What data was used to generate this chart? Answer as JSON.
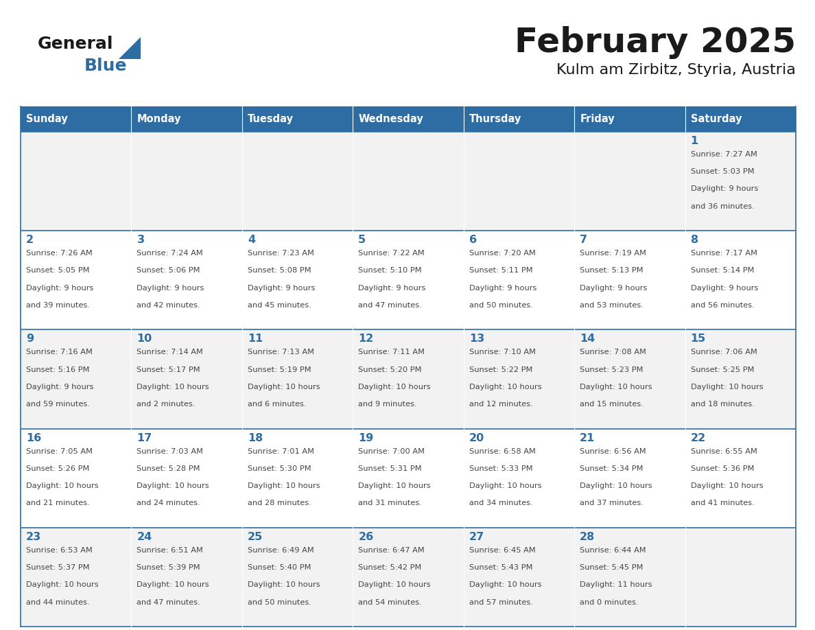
{
  "title": "February 2025",
  "subtitle": "Kulm am Zirbitz, Styria, Austria",
  "days_of_week": [
    "Sunday",
    "Monday",
    "Tuesday",
    "Wednesday",
    "Thursday",
    "Friday",
    "Saturday"
  ],
  "header_bg": "#2E6DA4",
  "header_text": "#FFFFFF",
  "cell_bg_odd": "#F2F2F2",
  "cell_bg_even": "#FFFFFF",
  "day_number_color": "#2E6DA4",
  "text_color": "#444444",
  "line_color": "#2E6DA4",
  "logo_color_general": "#1A1A1A",
  "logo_color_blue": "#2E6DA4",
  "calendar_data": [
    [
      null,
      null,
      null,
      null,
      null,
      null,
      {
        "day": 1,
        "sunrise": "7:27 AM",
        "sunset": "5:03 PM",
        "daylight_line1": "9 hours",
        "daylight_line2": "and 36 minutes."
      }
    ],
    [
      {
        "day": 2,
        "sunrise": "7:26 AM",
        "sunset": "5:05 PM",
        "daylight_line1": "9 hours",
        "daylight_line2": "and 39 minutes."
      },
      {
        "day": 3,
        "sunrise": "7:24 AM",
        "sunset": "5:06 PM",
        "daylight_line1": "9 hours",
        "daylight_line2": "and 42 minutes."
      },
      {
        "day": 4,
        "sunrise": "7:23 AM",
        "sunset": "5:08 PM",
        "daylight_line1": "9 hours",
        "daylight_line2": "and 45 minutes."
      },
      {
        "day": 5,
        "sunrise": "7:22 AM",
        "sunset": "5:10 PM",
        "daylight_line1": "9 hours",
        "daylight_line2": "and 47 minutes."
      },
      {
        "day": 6,
        "sunrise": "7:20 AM",
        "sunset": "5:11 PM",
        "daylight_line1": "9 hours",
        "daylight_line2": "and 50 minutes."
      },
      {
        "day": 7,
        "sunrise": "7:19 AM",
        "sunset": "5:13 PM",
        "daylight_line1": "9 hours",
        "daylight_line2": "and 53 minutes."
      },
      {
        "day": 8,
        "sunrise": "7:17 AM",
        "sunset": "5:14 PM",
        "daylight_line1": "9 hours",
        "daylight_line2": "and 56 minutes."
      }
    ],
    [
      {
        "day": 9,
        "sunrise": "7:16 AM",
        "sunset": "5:16 PM",
        "daylight_line1": "9 hours",
        "daylight_line2": "and 59 minutes."
      },
      {
        "day": 10,
        "sunrise": "7:14 AM",
        "sunset": "5:17 PM",
        "daylight_line1": "10 hours",
        "daylight_line2": "and 2 minutes."
      },
      {
        "day": 11,
        "sunrise": "7:13 AM",
        "sunset": "5:19 PM",
        "daylight_line1": "10 hours",
        "daylight_line2": "and 6 minutes."
      },
      {
        "day": 12,
        "sunrise": "7:11 AM",
        "sunset": "5:20 PM",
        "daylight_line1": "10 hours",
        "daylight_line2": "and 9 minutes."
      },
      {
        "day": 13,
        "sunrise": "7:10 AM",
        "sunset": "5:22 PM",
        "daylight_line1": "10 hours",
        "daylight_line2": "and 12 minutes."
      },
      {
        "day": 14,
        "sunrise": "7:08 AM",
        "sunset": "5:23 PM",
        "daylight_line1": "10 hours",
        "daylight_line2": "and 15 minutes."
      },
      {
        "day": 15,
        "sunrise": "7:06 AM",
        "sunset": "5:25 PM",
        "daylight_line1": "10 hours",
        "daylight_line2": "and 18 minutes."
      }
    ],
    [
      {
        "day": 16,
        "sunrise": "7:05 AM",
        "sunset": "5:26 PM",
        "daylight_line1": "10 hours",
        "daylight_line2": "and 21 minutes."
      },
      {
        "day": 17,
        "sunrise": "7:03 AM",
        "sunset": "5:28 PM",
        "daylight_line1": "10 hours",
        "daylight_line2": "and 24 minutes."
      },
      {
        "day": 18,
        "sunrise": "7:01 AM",
        "sunset": "5:30 PM",
        "daylight_line1": "10 hours",
        "daylight_line2": "and 28 minutes."
      },
      {
        "day": 19,
        "sunrise": "7:00 AM",
        "sunset": "5:31 PM",
        "daylight_line1": "10 hours",
        "daylight_line2": "and 31 minutes."
      },
      {
        "day": 20,
        "sunrise": "6:58 AM",
        "sunset": "5:33 PM",
        "daylight_line1": "10 hours",
        "daylight_line2": "and 34 minutes."
      },
      {
        "day": 21,
        "sunrise": "6:56 AM",
        "sunset": "5:34 PM",
        "daylight_line1": "10 hours",
        "daylight_line2": "and 37 minutes."
      },
      {
        "day": 22,
        "sunrise": "6:55 AM",
        "sunset": "5:36 PM",
        "daylight_line1": "10 hours",
        "daylight_line2": "and 41 minutes."
      }
    ],
    [
      {
        "day": 23,
        "sunrise": "6:53 AM",
        "sunset": "5:37 PM",
        "daylight_line1": "10 hours",
        "daylight_line2": "and 44 minutes."
      },
      {
        "day": 24,
        "sunrise": "6:51 AM",
        "sunset": "5:39 PM",
        "daylight_line1": "10 hours",
        "daylight_line2": "and 47 minutes."
      },
      {
        "day": 25,
        "sunrise": "6:49 AM",
        "sunset": "5:40 PM",
        "daylight_line1": "10 hours",
        "daylight_line2": "and 50 minutes."
      },
      {
        "day": 26,
        "sunrise": "6:47 AM",
        "sunset": "5:42 PM",
        "daylight_line1": "10 hours",
        "daylight_line2": "and 54 minutes."
      },
      {
        "day": 27,
        "sunrise": "6:45 AM",
        "sunset": "5:43 PM",
        "daylight_line1": "10 hours",
        "daylight_line2": "and 57 minutes."
      },
      {
        "day": 28,
        "sunrise": "6:44 AM",
        "sunset": "5:45 PM",
        "daylight_line1": "11 hours",
        "daylight_line2": "and 0 minutes."
      },
      null
    ]
  ]
}
